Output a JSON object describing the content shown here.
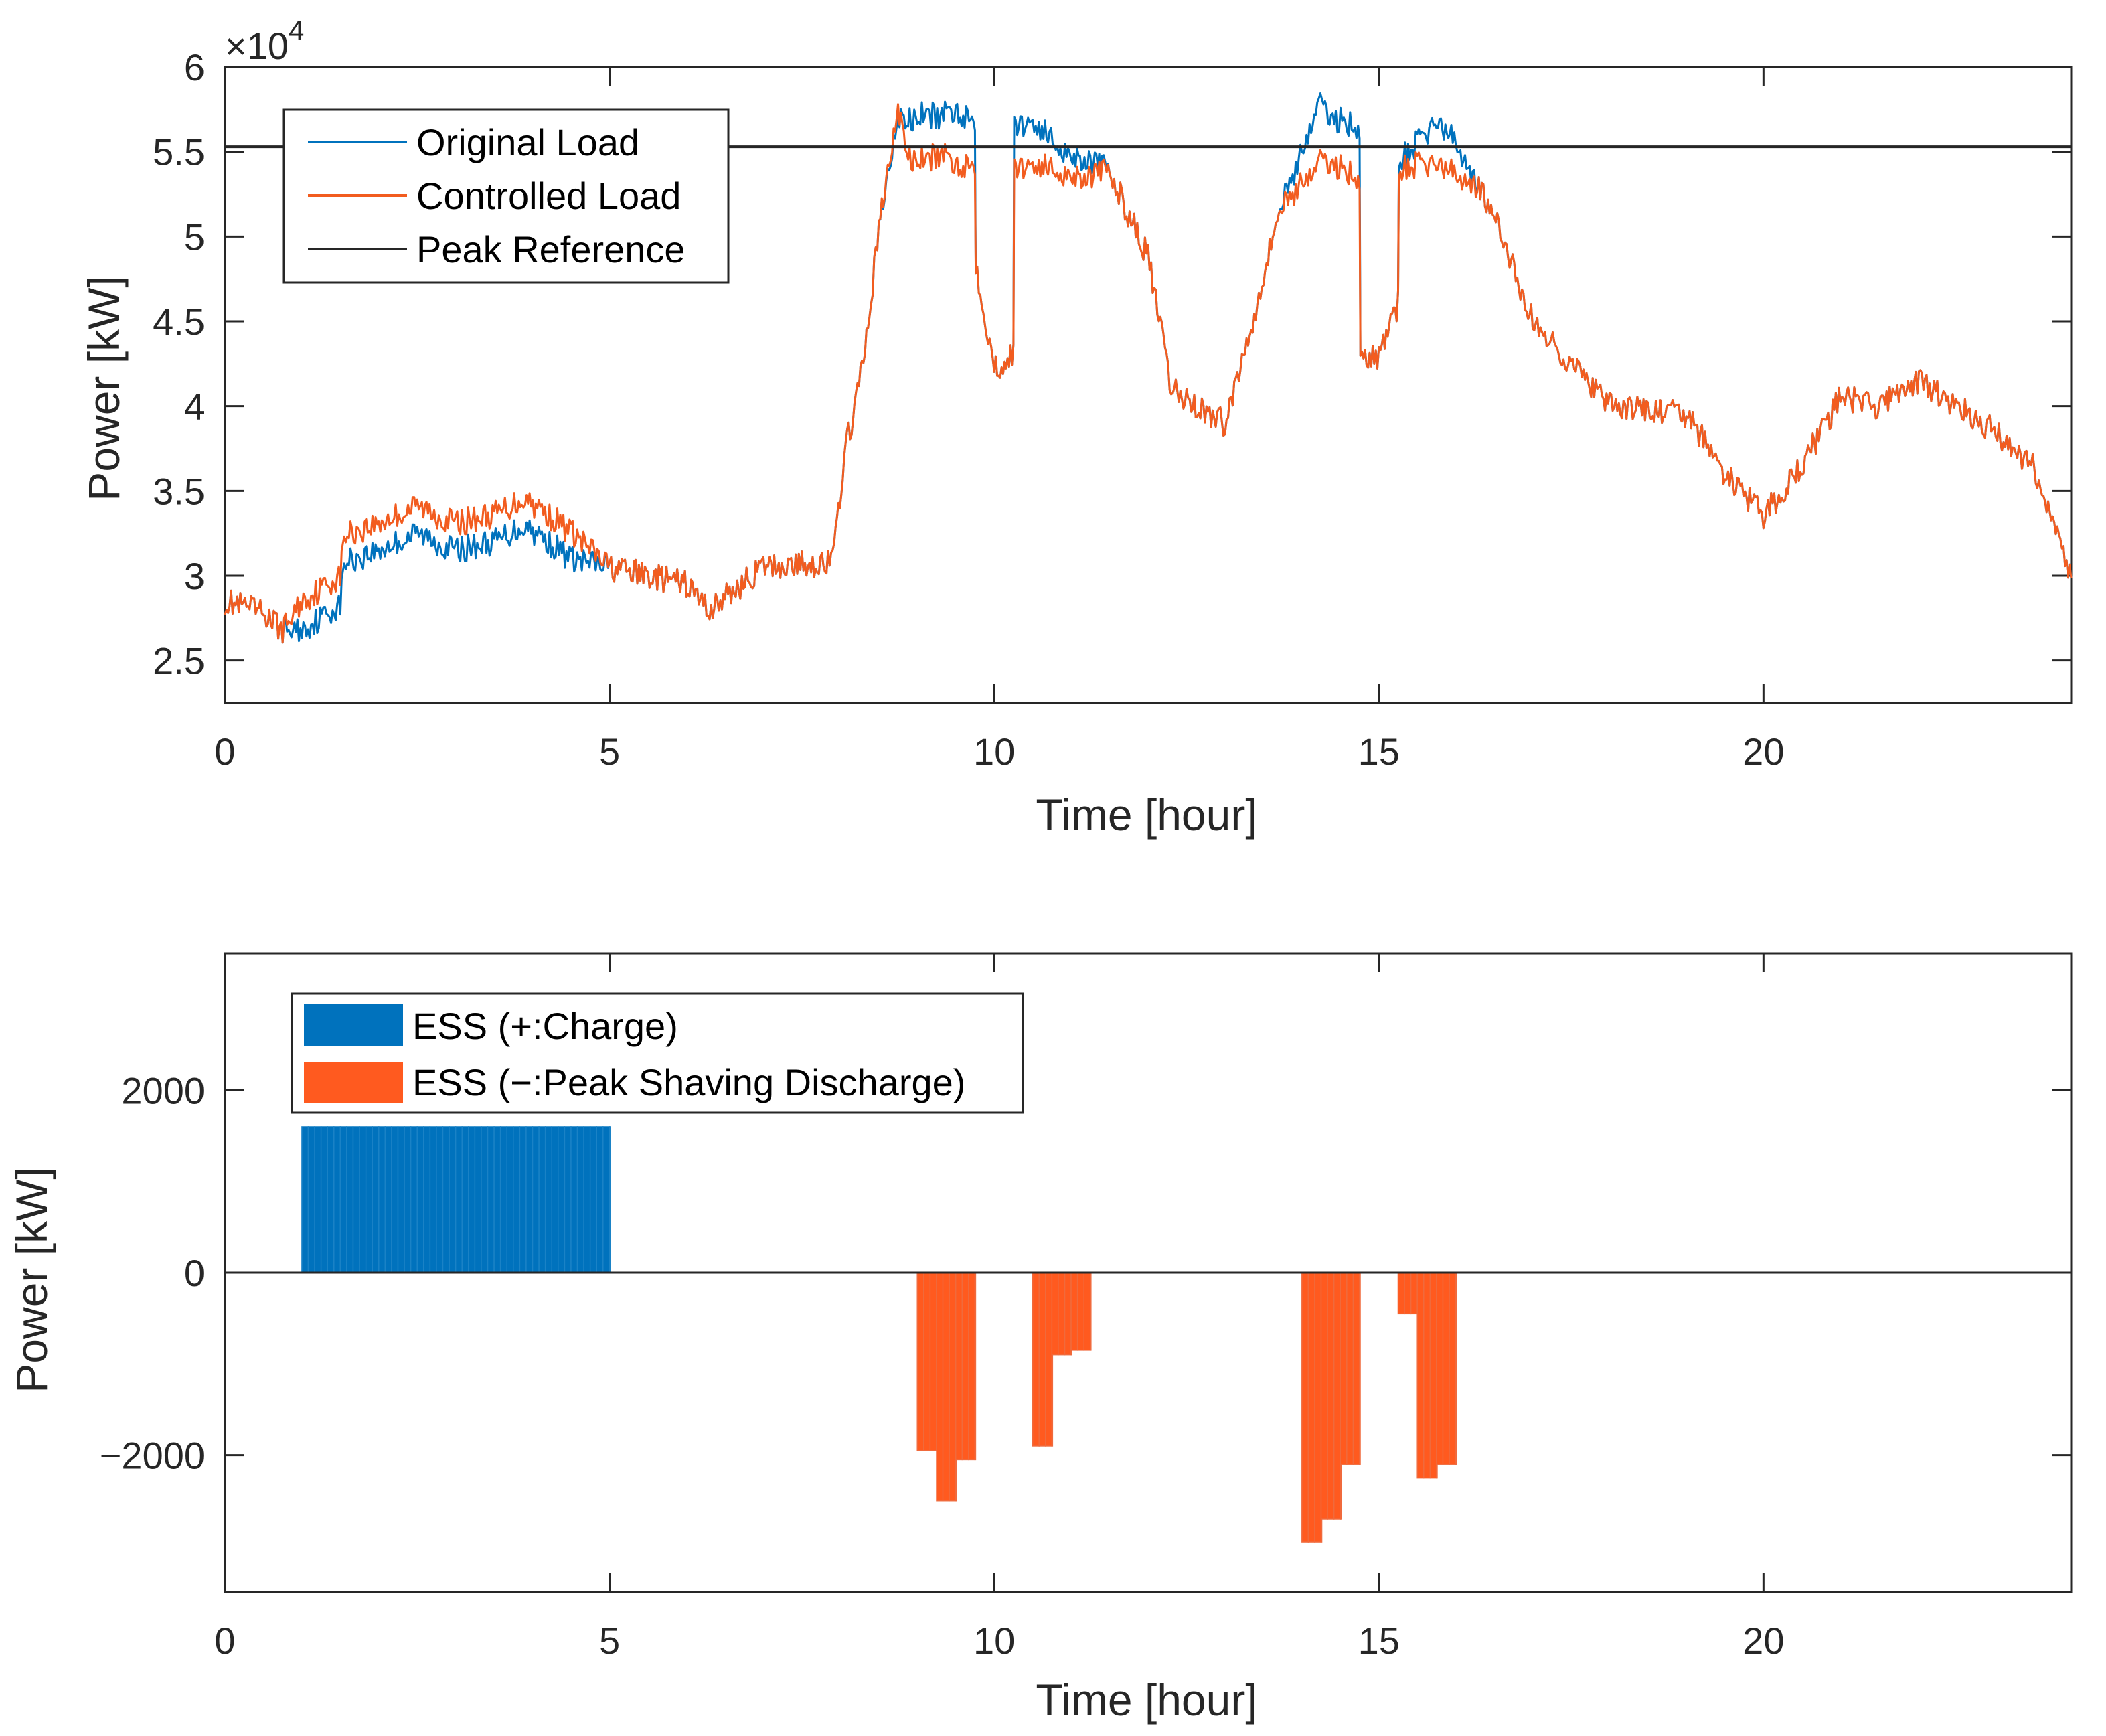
{
  "chart_data": [
    {
      "type": "line",
      "xlabel": "Time [hour]",
      "ylabel": "Power [kW]",
      "exponent_label_prefix": "×10",
      "exponent_label_power": "4",
      "xlim": [
        0,
        24
      ],
      "ylim": [
        22500,
        60000
      ],
      "xticks": [
        0,
        5,
        10,
        15,
        20
      ],
      "yticks": [
        25000,
        30000,
        35000,
        40000,
        45000,
        50000,
        55000,
        60000
      ],
      "ytick_labels": [
        "2.5",
        "3",
        "3.5",
        "4",
        "4.5",
        "5",
        "5.5",
        "6"
      ],
      "grid": false,
      "legend_position": "top-left",
      "peak_reference": 55300,
      "colors": {
        "original": "#0072BD",
        "controlled": "#F25C1F",
        "peak": "#262626"
      },
      "series": [
        {
          "name": "Original Load",
          "x": [
            0,
            0.5,
            0.75,
            1.0,
            1.5,
            1.55,
            2.0,
            2.5,
            3.0,
            3.5,
            3.9,
            4.5,
            5.0,
            6.0,
            6.3,
            7.0,
            7.9,
            8.05,
            8.3,
            8.5,
            8.75,
            8.9,
            9.1,
            9.3,
            9.5,
            9.75,
            9.76,
            10.0,
            10.25,
            10.26,
            10.5,
            10.8,
            11.0,
            11.25,
            11.5,
            12.0,
            12.3,
            12.8,
            13.0,
            13.3,
            13.7,
            14.0,
            14.2,
            14.4,
            14.75,
            14.76,
            15.0,
            15.25,
            15.26,
            15.5,
            15.75,
            16.0,
            16.3,
            16.6,
            17.0,
            18.0,
            19.0,
            19.5,
            20.0,
            20.5,
            21.0,
            21.5,
            22.0,
            22.5,
            23.0,
            23.5,
            23.7,
            24.0
          ],
          "y": [
            28500,
            27800,
            26800,
            26800,
            28300,
            30800,
            31500,
            32500,
            31500,
            32000,
            33000,
            31000,
            30500,
            29500,
            28000,
            30500,
            30800,
            37000,
            42500,
            50500,
            57000,
            56800,
            57200,
            57000,
            57500,
            56800,
            48500,
            42200,
            43000,
            56500,
            56800,
            55500,
            54800,
            54500,
            53800,
            48800,
            41000,
            39500,
            39000,
            44000,
            51500,
            55000,
            57800,
            57000,
            56500,
            42500,
            43000,
            46000,
            54500,
            55500,
            56800,
            55500,
            53000,
            50000,
            45000,
            40000,
            39500,
            36000,
            33500,
            36500,
            40500,
            40000,
            41500,
            40000,
            38500,
            36500,
            34000,
            30000
          ]
        },
        {
          "name": "Controlled Load",
          "x": [
            0,
            0.5,
            0.75,
            1.0,
            1.5,
            1.55,
            2.0,
            2.5,
            3.0,
            3.5,
            3.9,
            4.5,
            5.0,
            6.0,
            6.3,
            7.0,
            7.9,
            8.05,
            8.3,
            8.5,
            8.75,
            8.9,
            9.1,
            9.3,
            9.5,
            9.75,
            9.76,
            10.0,
            10.25,
            10.26,
            10.5,
            10.8,
            11.0,
            11.25,
            11.5,
            12.0,
            12.3,
            12.8,
            13.0,
            13.3,
            13.7,
            14.0,
            14.2,
            14.4,
            14.75,
            14.76,
            15.0,
            15.25,
            15.26,
            15.5,
            15.75,
            16.0,
            16.3,
            16.6,
            17.0,
            18.0,
            19.0,
            19.5,
            20.0,
            20.5,
            21.0,
            21.5,
            22.0,
            22.5,
            23.0,
            23.5,
            23.7,
            24.0
          ],
          "y": [
            28500,
            27800,
            26800,
            28500,
            30000,
            32400,
            33100,
            34100,
            33100,
            33600,
            34600,
            32600,
            30500,
            29500,
            28000,
            30500,
            30800,
            37000,
            42500,
            50500,
            57500,
            54500,
            54500,
            54800,
            54300,
            54200,
            48500,
            42200,
            43000,
            54000,
            54300,
            53900,
            53600,
            53600,
            53800,
            48800,
            41000,
            39500,
            39000,
            44000,
            51500,
            53200,
            54300,
            54300,
            53500,
            42500,
            43000,
            46000,
            54000,
            54200,
            54300,
            53600,
            53000,
            50000,
            45000,
            40000,
            39500,
            36000,
            33500,
            36500,
            40500,
            40000,
            41500,
            40000,
            38500,
            36500,
            34000,
            30000
          ]
        },
        {
          "name": "Peak Reference",
          "x": [
            0,
            24
          ],
          "y": [
            55300,
            55300
          ]
        }
      ]
    },
    {
      "type": "bar",
      "xlabel": "Time [hour]",
      "ylabel": "Power [kW]",
      "xlim": [
        0,
        24
      ],
      "ylim": [
        -3500,
        3500
      ],
      "xticks": [
        0,
        5,
        10,
        15,
        20
      ],
      "yticks": [
        -2000,
        0,
        2000
      ],
      "ytick_labels": [
        "−2000",
        "0",
        "2000"
      ],
      "grid": false,
      "legend_position": "top-left",
      "bar_width_hours": 0.0833,
      "colors": {
        "charge": "#0072BD",
        "discharge": "#FF5A1F"
      },
      "series": [
        {
          "name": "ESS (+:Charge)",
          "segments": [
            {
              "start": 1.0,
              "end": 5.0,
              "value": 1600
            }
          ]
        },
        {
          "name": "ESS (−:Peak Shaving Discharge)",
          "segments": [
            {
              "start": 9.0,
              "end": 9.25,
              "value": -1950
            },
            {
              "start": 9.25,
              "end": 9.5,
              "value": -2500
            },
            {
              "start": 9.5,
              "end": 9.75,
              "value": -2050
            },
            {
              "start": 10.5,
              "end": 10.75,
              "value": -1900
            },
            {
              "start": 10.75,
              "end": 11.0,
              "value": -900
            },
            {
              "start": 11.0,
              "end": 11.25,
              "value": -850
            },
            {
              "start": 14.0,
              "end": 14.25,
              "value": -2950
            },
            {
              "start": 14.25,
              "end": 14.5,
              "value": -2700
            },
            {
              "start": 14.5,
              "end": 14.75,
              "value": -2100
            },
            {
              "start": 15.25,
              "end": 15.5,
              "value": -450
            },
            {
              "start": 15.5,
              "end": 15.75,
              "value": -2250
            },
            {
              "start": 15.75,
              "end": 16.0,
              "value": -2100
            }
          ]
        }
      ]
    }
  ]
}
